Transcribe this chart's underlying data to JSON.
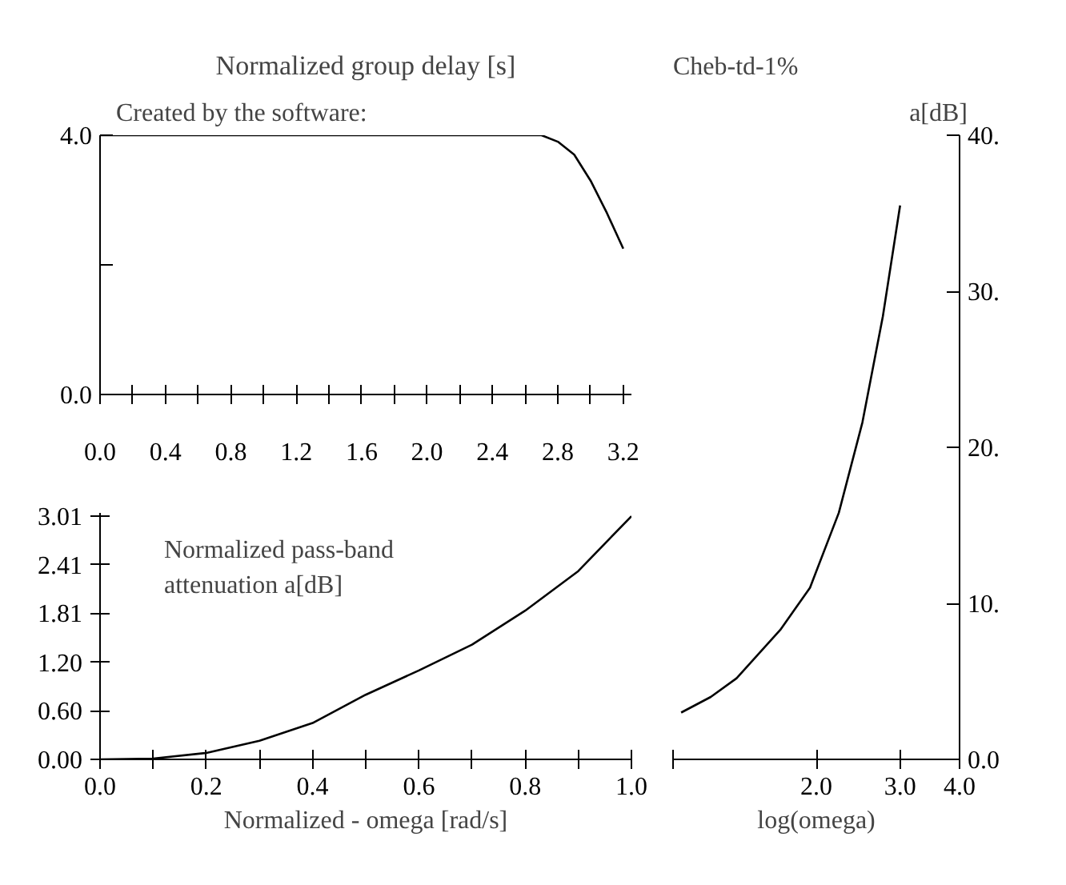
{
  "chart_data": [
    {
      "type": "line",
      "title": "Normalized group delay [s]",
      "subtitle": "Created by the software:",
      "x": [
        0,
        0.2,
        0.4,
        0.6,
        0.8,
        1.0,
        1.2,
        1.4,
        1.6,
        1.8,
        2.0,
        2.2,
        2.4,
        2.6,
        2.7,
        2.8,
        2.9,
        3.0,
        3.1,
        3.2
      ],
      "series": [
        {
          "color": "#000000",
          "values": [
            4.0,
            4.0,
            4.0,
            4.0,
            4.0,
            4.0,
            4.0,
            4.0,
            4.0,
            4.0,
            4.0,
            4.0,
            4.0,
            4.0,
            4.0,
            3.9,
            3.7,
            3.3,
            2.8,
            2.25
          ]
        }
      ],
      "xlim": [
        0,
        3.25
      ],
      "ylim": [
        0,
        4.0
      ],
      "xticks": [
        {
          "value": 0,
          "label": "0.0"
        },
        {
          "value": 0.2,
          "label": null
        },
        {
          "value": 0.4,
          "label": "0.4"
        },
        {
          "value": 0.6,
          "label": null
        },
        {
          "value": 0.8,
          "label": "0.8"
        },
        {
          "value": 1.0,
          "label": null
        },
        {
          "value": 1.2,
          "label": "1.2"
        },
        {
          "value": 1.4,
          "label": null
        },
        {
          "value": 1.6,
          "label": "1.6"
        },
        {
          "value": 1.8,
          "label": null
        },
        {
          "value": 2.0,
          "label": "2.0"
        },
        {
          "value": 2.2,
          "label": null
        },
        {
          "value": 2.4,
          "label": "2.4"
        },
        {
          "value": 2.6,
          "label": null
        },
        {
          "value": 2.8,
          "label": "2.8"
        },
        {
          "value": 3.0,
          "label": null
        },
        {
          "value": 3.2,
          "label": "3.2"
        }
      ],
      "yticks": [
        {
          "value": 0,
          "label": "0.0"
        },
        {
          "value": 2,
          "label": null
        },
        {
          "value": 4,
          "label": "4.0"
        }
      ]
    },
    {
      "type": "line",
      "title": "Normalized pass-band attenuation a[dB]",
      "xlabel": "Normalized - omega [rad/s]",
      "x": [
        0,
        0.1,
        0.2,
        0.3,
        0.4,
        0.5,
        0.6,
        0.7,
        0.8,
        0.9,
        1.0
      ],
      "series": [
        {
          "color": "#000000",
          "values": [
            0,
            0.01,
            0.08,
            0.23,
            0.45,
            0.8,
            1.1,
            1.42,
            1.84,
            2.33,
            3.01
          ]
        }
      ],
      "xlim": [
        0,
        1.0
      ],
      "ylim": [
        0,
        3.05
      ],
      "xticks": [
        {
          "value": 0,
          "label": "0.0"
        },
        {
          "value": 0.1,
          "label": null
        },
        {
          "value": 0.2,
          "label": "0.2"
        },
        {
          "value": 0.3,
          "label": null
        },
        {
          "value": 0.4,
          "label": "0.4"
        },
        {
          "value": 0.5,
          "label": null
        },
        {
          "value": 0.6,
          "label": "0.6"
        },
        {
          "value": 0.7,
          "label": null
        },
        {
          "value": 0.8,
          "label": "0.8"
        },
        {
          "value": 0.9,
          "label": null
        },
        {
          "value": 1.0,
          "label": "1.0"
        }
      ],
      "yticks": [
        {
          "value": 0,
          "label": "0.00"
        },
        {
          "value": 0.6,
          "label": "0.60"
        },
        {
          "value": 1.2,
          "label": "1.20"
        },
        {
          "value": 1.81,
          "label": "1.81"
        },
        {
          "value": 2.41,
          "label": "2.41"
        },
        {
          "value": 3.01,
          "label": "3.01"
        }
      ]
    },
    {
      "type": "line",
      "annotations": [
        "Cheb-td-1%"
      ],
      "ylabel": "a[dB]",
      "xlabel": "log(omega)",
      "log": "x",
      "x": [
        1.04,
        1.2,
        1.36,
        1.68,
        1.94,
        2.23,
        2.5,
        2.76,
        3.0
      ],
      "series": [
        {
          "color": "#000000",
          "values": [
            3.0,
            4.0,
            5.2,
            8.3,
            11,
            15.8,
            21.6,
            28.4,
            35.5
          ]
        }
      ],
      "xlim": [
        1,
        4
      ],
      "ylim": [
        0,
        40
      ],
      "xticks": [
        {
          "value": 1,
          "label": null
        },
        {
          "value": 2,
          "label": "2.0"
        },
        {
          "value": 3,
          "label": "3.0"
        },
        {
          "value": 4,
          "label": "4.0"
        }
      ],
      "yticks": [
        {
          "value": 0,
          "label": "0.0"
        },
        {
          "value": 10,
          "label": "10."
        },
        {
          "value": 20,
          "label": "20."
        },
        {
          "value": 30,
          "label": "30."
        },
        {
          "value": 40,
          "label": "40."
        }
      ]
    }
  ]
}
